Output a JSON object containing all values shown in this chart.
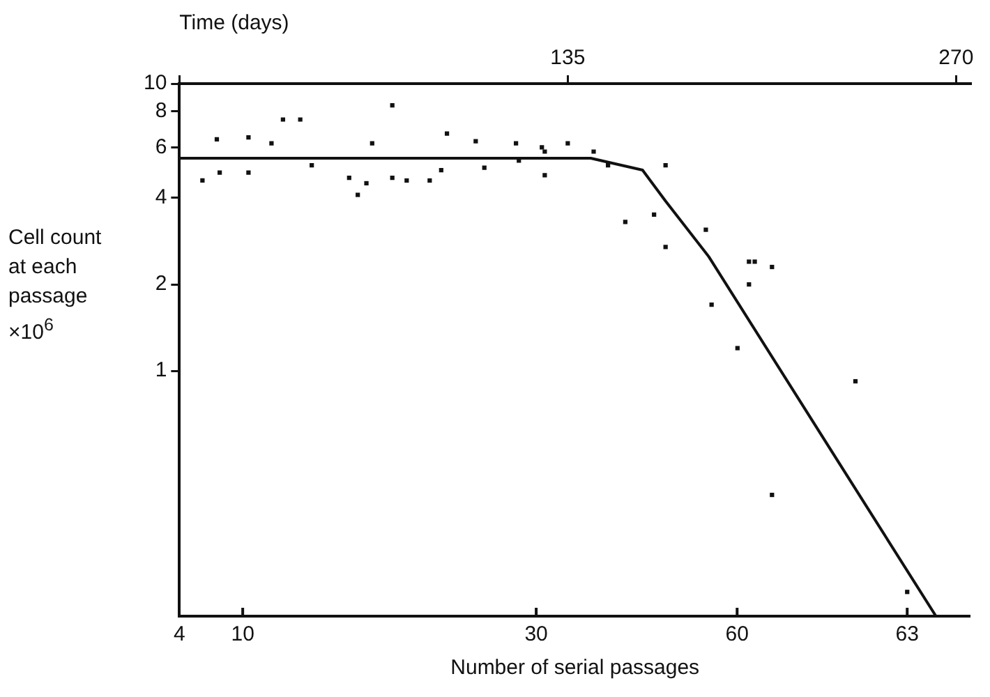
{
  "chart_data": {
    "type": "scatter",
    "xlabel": "Time (days)",
    "ylabel": "Cell count\nat each\npassage\n×10$^{6}$",
    "log": "y",
    "grid": false,
    "xlim": [
      0,
      275
    ],
    "xticks": [
      {
        "value": 0,
        "label": null
      },
      135,
      270
    ],
    "annotations": [
      "4",
      "10",
      "30",
      "60",
      "63",
      "Number of serial passages"
    ],
    "ylim": [
      0.14,
      10
    ],
    "yticks": [
      1,
      2,
      4,
      6,
      8,
      10
    ],
    "series": [
      {
        "color": "#111111",
        "marker": "square",
        "x": [
          8,
          13,
          14,
          24,
          24,
          32,
          36,
          42,
          46,
          59,
          62,
          65,
          67,
          74,
          74,
          79,
          87,
          91,
          93,
          103,
          106,
          117,
          118,
          126,
          127,
          127,
          135,
          144,
          149,
          155,
          165,
          169,
          169,
          183,
          198,
          200,
          206,
          198,
          185,
          194,
          235,
          206,
          253
        ],
        "values": [
          4.6,
          6.4,
          4.9,
          6.5,
          4.9,
          6.2,
          7.5,
          7.5,
          5.2,
          4.7,
          4.1,
          4.5,
          6.2,
          8.4,
          4.7,
          4.6,
          4.6,
          5.0,
          6.7,
          6.3,
          5.1,
          6.2,
          5.4,
          6.0,
          5.8,
          4.8,
          6.2,
          5.8,
          5.2,
          3.3,
          3.5,
          5.2,
          2.7,
          3.1,
          2.4,
          2.4,
          2.3,
          2.0,
          1.7,
          1.2,
          0.92,
          0.37,
          0.17
        ]
      },
      {
        "type": "line",
        "color": "#111111",
        "marker": "none",
        "line_style": "solid",
        "x": [
          0,
          143,
          161,
          169,
          184,
          227,
          263
        ],
        "values": [
          5.5,
          5.5,
          5.0,
          3.9,
          2.5,
          0.52,
          0.14
        ]
      }
    ]
  }
}
